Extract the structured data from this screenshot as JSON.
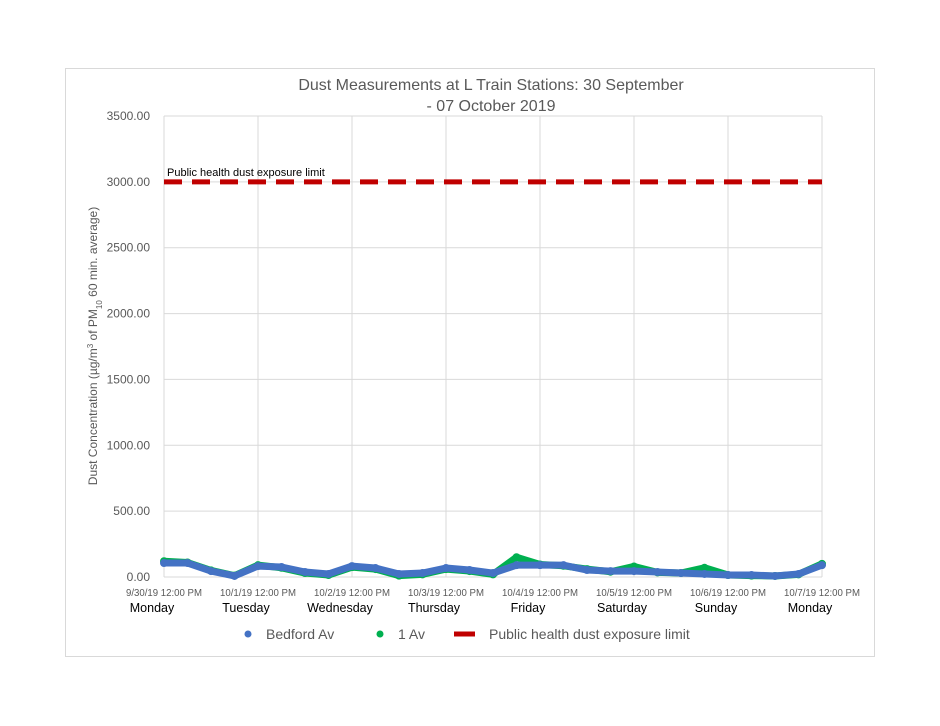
{
  "chart_data": {
    "type": "scatter",
    "title": "Dust Measurements at L Train Stations: 30 September - 07 October 2019",
    "title_lines": [
      "Dust Measurements at L Train Stations: 30 September",
      "- 07 October 2019"
    ],
    "ylabel": "Dust Concentration (µg/m³ of PM10 60 min. average)",
    "ylabel_parts": {
      "pre": "Dust Concentration (µg/m",
      "sup": "3",
      "mid": " of PM",
      "sub": "10",
      "post": " 60 min. average)"
    },
    "ylim": [
      0,
      3500
    ],
    "yticks": [
      "0.00",
      "500.00",
      "1000.00",
      "1500.00",
      "2000.00",
      "2500.00",
      "3000.00",
      "3500.00"
    ],
    "xticks": [
      "9/30/19 12:00 PM",
      "10/1/19 12:00 PM",
      "10/2/19 12:00 PM",
      "10/3/19 12:00 PM",
      "10/4/19 12:00 PM",
      "10/5/19 12:00 PM",
      "10/6/19 12:00 PM",
      "10/7/19 12:00 PM"
    ],
    "day_labels": [
      "Monday",
      "Tuesday",
      "Wednesday",
      "Thursday",
      "Friday",
      "Saturday",
      "Sunday",
      "Monday"
    ],
    "xlim": [
      "2019-09-30 12:00",
      "2019-10-07 12:00"
    ],
    "grid": true,
    "legend_position": "bottom",
    "x": [
      "2019-09-30 12:00",
      "2019-09-30 18:00",
      "2019-10-01 00:00",
      "2019-10-01 06:00",
      "2019-10-01 12:00",
      "2019-10-01 18:00",
      "2019-10-02 00:00",
      "2019-10-02 06:00",
      "2019-10-02 12:00",
      "2019-10-02 18:00",
      "2019-10-03 00:00",
      "2019-10-03 06:00",
      "2019-10-03 12:00",
      "2019-10-03 18:00",
      "2019-10-04 00:00",
      "2019-10-04 06:00",
      "2019-10-04 12:00",
      "2019-10-04 18:00",
      "2019-10-05 00:00",
      "2019-10-05 06:00",
      "2019-10-05 12:00",
      "2019-10-05 18:00",
      "2019-10-06 00:00",
      "2019-10-06 06:00",
      "2019-10-06 12:00",
      "2019-10-06 18:00",
      "2019-10-07 00:00",
      "2019-10-07 06:00",
      "2019-10-07 12:00"
    ],
    "series": [
      {
        "name": "Bedford Av",
        "color": "#4472c4",
        "values": [
          106,
          106,
          45,
          8,
          83,
          76,
          38,
          23,
          83,
          68,
          23,
          30,
          68,
          53,
          30,
          90,
          90,
          90,
          53,
          45,
          45,
          38,
          30,
          23,
          15,
          15,
          8,
          23,
          90
        ]
      },
      {
        "name": "1 Av",
        "color": "#00b050",
        "values": [
          120,
          110,
          50,
          10,
          90,
          70,
          30,
          15,
          75,
          60,
          10,
          20,
          60,
          45,
          20,
          150,
          95,
          85,
          60,
          40,
          80,
          35,
          30,
          70,
          15,
          10,
          8,
          20,
          100
        ]
      }
    ],
    "reference_line": {
      "name": "Public health dust exposure limit",
      "label": "Public health dust exposure limit",
      "value": 3000,
      "color": "#c00000"
    }
  }
}
